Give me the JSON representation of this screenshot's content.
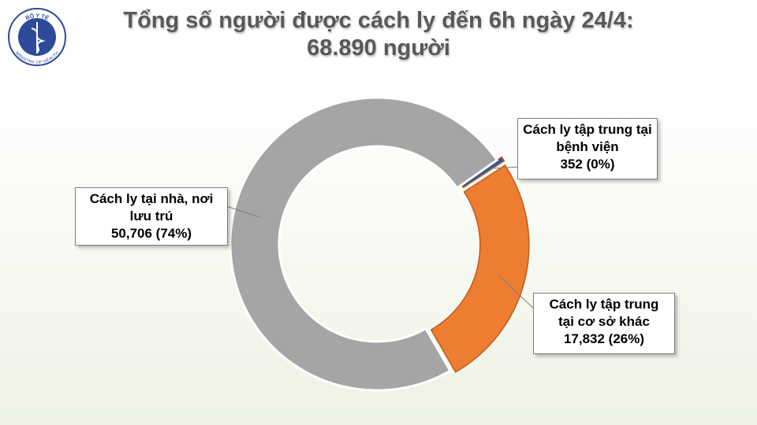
{
  "logo": {
    "top": "BỘ Y TẾ",
    "bottom": "MINISTRY OF HEALTH"
  },
  "chart_data": {
    "type": "donut",
    "title": "Tổng số người được cách ly đến 6h ngày 24/4:",
    "subtitle": "68.890 người",
    "categories": [
      "Cách ly tập trung tại bệnh viện",
      "Cách ly tập trung tại cơ sở khác",
      "Cách ly tại nhà, nơi lưu trú"
    ],
    "values": [
      352,
      17832,
      50706
    ],
    "value_labels": [
      "352  (0%)",
      "17,832  (26%)",
      "50,706  (74%)"
    ],
    "colors": [
      "#2f5597",
      "#ed7d31",
      "#a5a5a5"
    ]
  }
}
